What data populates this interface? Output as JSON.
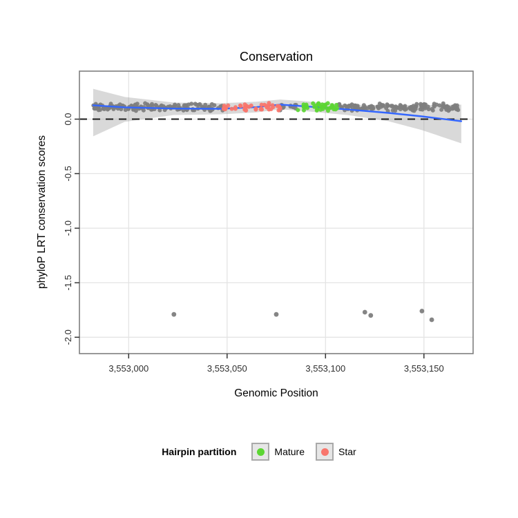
{
  "chart_data": {
    "type": "scatter",
    "title": "Conservation",
    "xlabel": "Genomic Position",
    "ylabel": "phyloP LRT conservation scores",
    "xlim": [
      3552975,
      3553175
    ],
    "ylim": [
      -2.15,
      0.44
    ],
    "grid": "major",
    "legend_position": "bottom",
    "x_ticks": [
      {
        "value": 3553000,
        "label": "3,553,000"
      },
      {
        "value": 3553050,
        "label": "3,553,050"
      },
      {
        "value": 3553100,
        "label": "3,553,100"
      },
      {
        "value": 3553150,
        "label": "3,553,150"
      }
    ],
    "y_ticks": [
      {
        "value": 0,
        "label": "0.0"
      },
      {
        "value": -0.5,
        "label": "-0.5"
      },
      {
        "value": -1,
        "label": "-1.0"
      },
      {
        "value": -1.5,
        "label": "-1.5"
      },
      {
        "value": -2,
        "label": "-2.0"
      }
    ],
    "reference_line": {
      "y": 0,
      "style": "dashed",
      "color": "#1A1A1A"
    },
    "point_band": {
      "description": "dense jittered per-base phyloP scores clustered near 0.1 across the whole hairpin region",
      "x_start": 3552982,
      "x_end": 3553168,
      "y_center": 0.11,
      "y_spread": 0.04,
      "approx_count": 380,
      "seed": 1234,
      "color": "#7E7E7E"
    },
    "partitions": [
      {
        "name": "Star",
        "color": "#F8766D",
        "x_start": 3553048,
        "x_end": 3553077
      },
      {
        "name": "Mature",
        "color": "#5CD633",
        "x_start": 3553086,
        "x_end": 3553106
      }
    ],
    "outlier_points": [
      {
        "x": 3553023,
        "y": -1.79
      },
      {
        "x": 3553075,
        "y": -1.79
      },
      {
        "x": 3553120,
        "y": -1.77
      },
      {
        "x": 3553123,
        "y": -1.8
      },
      {
        "x": 3553149,
        "y": -1.76
      },
      {
        "x": 3553154,
        "y": -1.84
      }
    ],
    "smooth_line": {
      "color": "#3366FF",
      "x": [
        3552982,
        3552998,
        3553023,
        3553047,
        3553065,
        3553077,
        3553089,
        3553111,
        3553132,
        3553149,
        3553169
      ],
      "y": [
        0.127,
        0.108,
        0.097,
        0.095,
        0.11,
        0.133,
        0.118,
        0.089,
        0.057,
        0.025,
        -0.019
      ]
    },
    "ribbon": {
      "color": "#9C9C9C",
      "opacity": 0.38,
      "x": [
        3552982,
        3552998,
        3553023,
        3553047,
        3553065,
        3553077,
        3553089,
        3553111,
        3553132,
        3553149,
        3553169
      ],
      "upper": [
        0.278,
        0.203,
        0.152,
        0.146,
        0.16,
        0.18,
        0.165,
        0.133,
        0.127,
        0.127,
        0.133
      ],
      "lower": [
        -0.158,
        -0.025,
        0.038,
        0.044,
        0.062,
        0.09,
        0.074,
        0.038,
        -0.019,
        -0.101,
        -0.222
      ]
    }
  },
  "legend": {
    "title": "Hairpin partition",
    "items": [
      {
        "label": "Mature",
        "color": "#5CD633"
      },
      {
        "label": "Star",
        "color": "#F8766D"
      }
    ]
  },
  "colors": {
    "panel_border": "#7F7F7F",
    "gridline": "#E4E4E4",
    "tick": "#333333",
    "point_gray": "#7E7E7E",
    "smooth_blue": "#3366FF",
    "background": "#FFFFFF"
  }
}
